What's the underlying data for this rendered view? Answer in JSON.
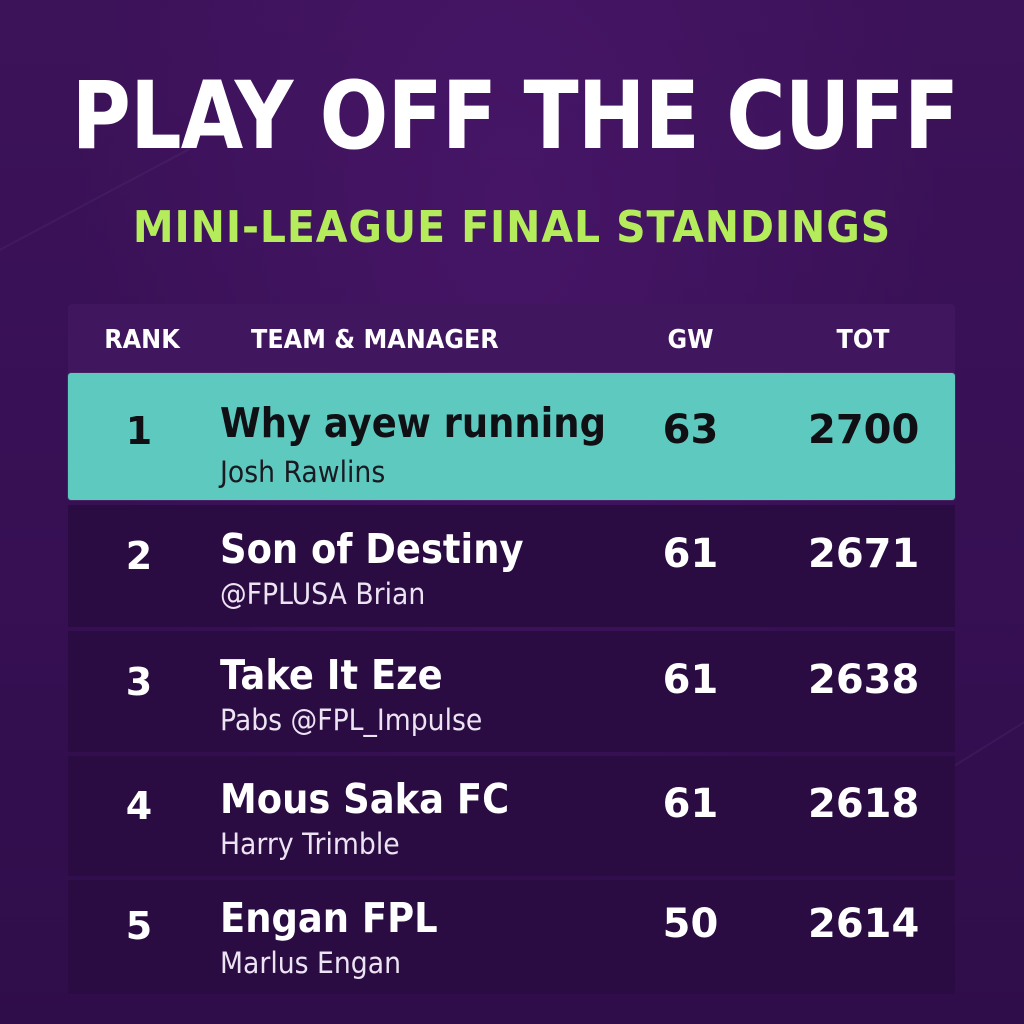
{
  "title": "PLAY OFF THE CUFF",
  "subtitle": "MINI-LEAGUE FINAL STANDINGS",
  "table": {
    "headers": {
      "rank": "RANK",
      "team": "TEAM & MANAGER",
      "gw": "GW",
      "tot": "TOT"
    },
    "rows": [
      {
        "rank": "1",
        "team": "Why ayew running",
        "manager": "Josh Rawlins",
        "gw": "63",
        "tot": "2700",
        "highlighted": true
      },
      {
        "rank": "2",
        "team": "Son of Destiny",
        "manager": "@FPLUSA Brian",
        "gw": "61",
        "tot": "2671",
        "highlighted": false
      },
      {
        "rank": "3",
        "team": "Take It Eze",
        "manager": "Pabs @FPL_Impulse",
        "gw": "61",
        "tot": "2638",
        "highlighted": false
      },
      {
        "rank": "4",
        "team": "Mous Saka FC",
        "manager": "Harry Trimble",
        "gw": "61",
        "tot": "2618",
        "highlighted": false
      },
      {
        "rank": "5",
        "team": "Engan FPL",
        "manager": "Marlus Engan",
        "gw": "50",
        "tot": "2614",
        "highlighted": false
      }
    ]
  },
  "colors": {
    "background": "#3a1157",
    "accent_green": "#b5ec5c",
    "leader_row": "#5ec9bf",
    "row": "#2a0b42",
    "header": "#40165f"
  }
}
